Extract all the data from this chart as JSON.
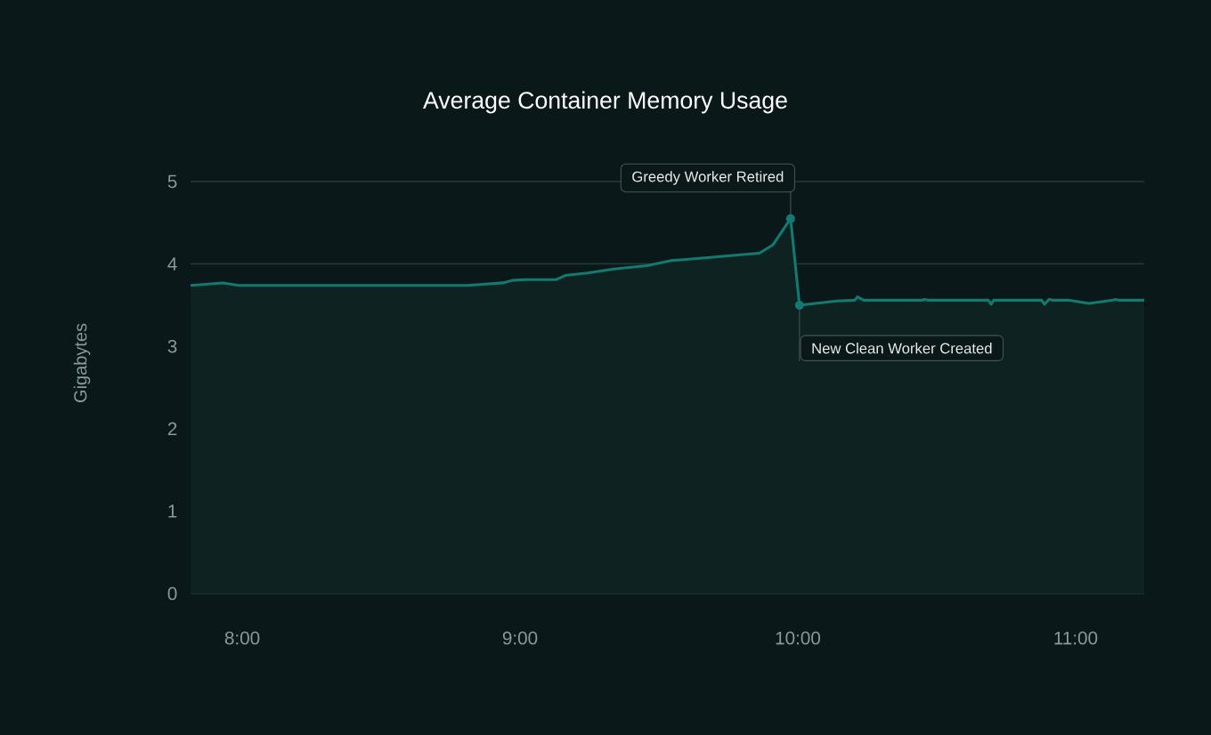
{
  "chart_data": {
    "type": "area",
    "title": "Average Container Memory Usage",
    "ylabel": "Gigabytes",
    "x": [
      7.814,
      7.93,
      7.987,
      8.811,
      8.939,
      8.971,
      9.019,
      9.131,
      9.163,
      9.244,
      9.34,
      9.458,
      9.542,
      9.619,
      9.862,
      9.91,
      9.974,
      10.006,
      10.141,
      10.205,
      10.215,
      10.237,
      10.449,
      10.455,
      10.468,
      10.686,
      10.696,
      10.705,
      10.878,
      10.888,
      10.904,
      10.917,
      10.974,
      11.048,
      11.135,
      11.144,
      11.154,
      11.247
    ],
    "values": [
      3.74,
      3.77,
      3.74,
      3.74,
      3.77,
      3.8,
      3.81,
      3.81,
      3.86,
      3.89,
      3.94,
      3.98,
      4.04,
      4.06,
      4.13,
      4.23,
      4.55,
      3.5,
      3.55,
      3.56,
      3.6,
      3.56,
      3.56,
      3.57,
      3.56,
      3.56,
      3.51,
      3.56,
      3.56,
      3.51,
      3.57,
      3.56,
      3.56,
      3.52,
      3.56,
      3.57,
      3.56,
      3.56
    ],
    "color": "#127a70",
    "xlim": [
      7.814,
      11.247
    ],
    "ylim": [
      0,
      5
    ],
    "xticks": [
      {
        "value": 8,
        "label": "8:00"
      },
      {
        "value": 9,
        "label": "9:00"
      },
      {
        "value": 10,
        "label": "10:00"
      },
      {
        "value": 11,
        "label": "11:00"
      }
    ],
    "yticks": [
      0,
      1,
      2,
      3,
      4,
      5
    ],
    "grid": "y",
    "annotations": [
      {
        "text": "Greedy Worker Retired",
        "x": 9.974,
        "y": 4.55
      },
      {
        "text": "New Clean Worker Created",
        "x": 10.006,
        "y": 3.5
      }
    ]
  }
}
